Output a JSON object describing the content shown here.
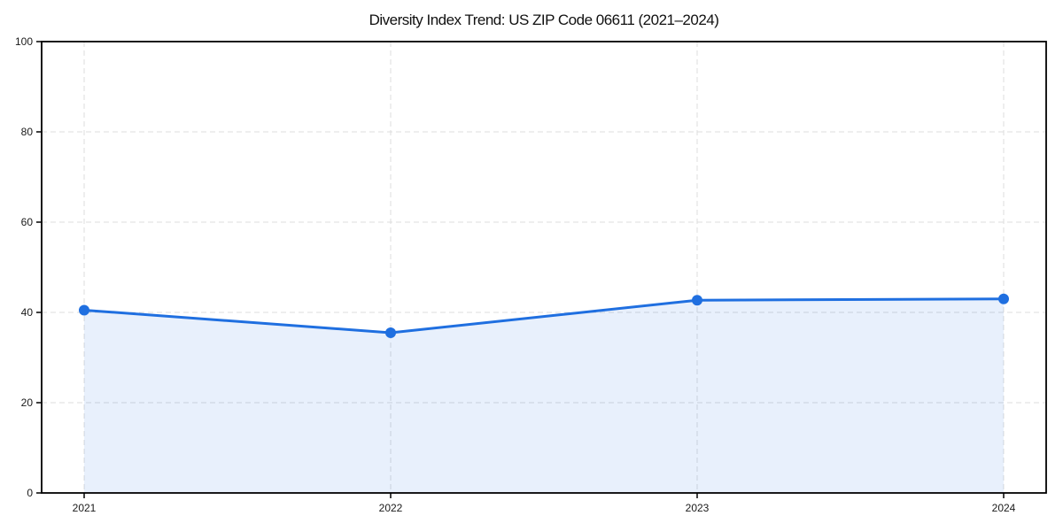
{
  "chart_data": {
    "type": "area",
    "title": "Diversity Index Trend: US ZIP Code 06611 (2021–2024)",
    "x": [
      "2021",
      "2022",
      "2023",
      "2024"
    ],
    "values": [
      40.5,
      35.5,
      42.7,
      43.0
    ],
    "xlabel": "",
    "ylabel": "",
    "ylim": [
      0,
      100
    ],
    "yticks": [
      0,
      20,
      40,
      60,
      80,
      100
    ],
    "grid": "dashed",
    "legend": "none",
    "colors": {
      "line": "#1f6fe0",
      "marker": "#1f6fe0",
      "fill": "rgba(31, 111, 224, 0.10)",
      "grid": "#dcdcdc",
      "spine": "#000000",
      "background": "#ffffff",
      "text": "#111111"
    }
  }
}
